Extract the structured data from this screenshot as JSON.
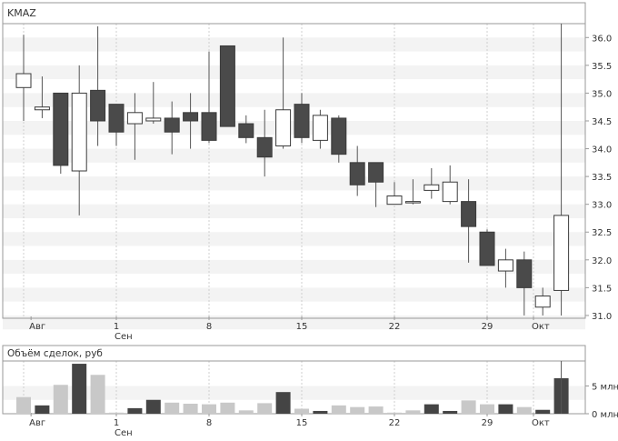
{
  "chart_data": [
    {
      "type": "candlestick",
      "title": "KMAZ",
      "y_tick_labels": [
        "36.0",
        "35.5",
        "35.0",
        "34.5",
        "34.0",
        "33.5",
        "33.0",
        "32.5",
        "32.0",
        "31.5",
        "31.0"
      ],
      "y_ticks": [
        36.0,
        35.5,
        35.0,
        34.5,
        34.0,
        33.5,
        33.0,
        32.5,
        32.0,
        31.5,
        31.0
      ],
      "ylim": [
        30.95,
        36.25
      ],
      "x_tick_labels": [
        {
          "label": "Авг",
          "day": 0.4
        },
        {
          "label": "1",
          "day": 5
        },
        {
          "label": "Сен",
          "day": 5
        },
        {
          "label": "8",
          "day": 10
        },
        {
          "label": "15",
          "day": 15
        },
        {
          "label": "22",
          "day": 20
        },
        {
          "label": "29",
          "day": 25
        },
        {
          "label": "Окт",
          "day": 27.5
        }
      ],
      "grid": true,
      "candles": [
        {
          "day": 0,
          "open": 35.1,
          "high": 36.05,
          "low": 34.5,
          "close": 35.35
        },
        {
          "day": 1,
          "open": 34.7,
          "high": 35.3,
          "low": 34.55,
          "close": 34.75
        },
        {
          "day": 2,
          "open": 35.0,
          "high": 35.0,
          "low": 33.55,
          "close": 33.7
        },
        {
          "day": 3,
          "open": 33.6,
          "high": 35.5,
          "low": 32.8,
          "close": 35.0
        },
        {
          "day": 4,
          "open": 35.05,
          "high": 36.2,
          "low": 34.05,
          "close": 34.5
        },
        {
          "day": 5,
          "open": 34.8,
          "high": 34.8,
          "low": 34.05,
          "close": 34.3
        },
        {
          "day": 6,
          "open": 34.45,
          "high": 35.0,
          "low": 33.8,
          "close": 34.65
        },
        {
          "day": 7,
          "open": 34.5,
          "high": 35.2,
          "low": 34.45,
          "close": 34.55
        },
        {
          "day": 8,
          "open": 34.55,
          "high": 34.85,
          "low": 33.9,
          "close": 34.3
        },
        {
          "day": 9,
          "open": 34.65,
          "high": 35.0,
          "low": 34.0,
          "close": 34.5
        },
        {
          "day": 10,
          "open": 34.65,
          "high": 35.75,
          "low": 34.1,
          "close": 34.15
        },
        {
          "day": 11,
          "open": 35.85,
          "high": 35.85,
          "low": 34.4,
          "close": 34.4
        },
        {
          "day": 12,
          "open": 34.45,
          "high": 34.6,
          "low": 34.1,
          "close": 34.2
        },
        {
          "day": 13,
          "open": 34.2,
          "high": 34.7,
          "low": 33.5,
          "close": 33.85
        },
        {
          "day": 14,
          "open": 34.05,
          "high": 36.0,
          "low": 34.0,
          "close": 34.7
        },
        {
          "day": 15,
          "open": 34.8,
          "high": 35.0,
          "low": 34.1,
          "close": 34.2
        },
        {
          "day": 16,
          "open": 34.15,
          "high": 34.7,
          "low": 34.0,
          "close": 34.6
        },
        {
          "day": 17,
          "open": 34.55,
          "high": 34.6,
          "low": 33.75,
          "close": 33.9
        },
        {
          "day": 18,
          "open": 33.75,
          "high": 34.05,
          "low": 33.15,
          "close": 33.35
        },
        {
          "day": 19,
          "open": 33.75,
          "high": 33.75,
          "low": 32.95,
          "close": 33.4
        },
        {
          "day": 20,
          "open": 33.0,
          "high": 33.4,
          "low": 33.0,
          "close": 33.15
        },
        {
          "day": 21,
          "open": 33.05,
          "high": 33.45,
          "low": 33.0,
          "close": 33.05
        },
        {
          "day": 22,
          "open": 33.25,
          "high": 33.65,
          "low": 33.1,
          "close": 33.35
        },
        {
          "day": 23,
          "open": 33.05,
          "high": 33.7,
          "low": 33.0,
          "close": 33.4
        },
        {
          "day": 24,
          "open": 33.05,
          "high": 33.45,
          "low": 31.95,
          "close": 32.6
        },
        {
          "day": 25,
          "open": 32.5,
          "high": 32.55,
          "low": 31.9,
          "close": 31.9
        },
        {
          "day": 26,
          "open": 31.8,
          "high": 32.2,
          "low": 31.5,
          "close": 32.0
        },
        {
          "day": 27,
          "open": 32.0,
          "high": 32.15,
          "low": 31.0,
          "close": 31.5
        },
        {
          "day": 28,
          "open": 31.15,
          "high": 31.5,
          "low": 31.0,
          "close": 31.35
        },
        {
          "day": 29,
          "open": 31.45,
          "high": 36.25,
          "low": 31.0,
          "close": 32.8
        }
      ]
    },
    {
      "type": "bar",
      "title": "Объём сделок, руб",
      "y_tick_labels": [
        "5 млн",
        "0 млн"
      ],
      "y_ticks": [
        5,
        0
      ],
      "ylim": [
        0,
        9.5
      ],
      "unit": "млн руб",
      "x_tick_labels": [
        {
          "label": "Авг",
          "day": 0.4
        },
        {
          "label": "1",
          "day": 5
        },
        {
          "label": "Сен",
          "day": 5
        },
        {
          "label": "8",
          "day": 10
        },
        {
          "label": "15",
          "day": 15
        },
        {
          "label": "22",
          "day": 20
        },
        {
          "label": "29",
          "day": 25
        },
        {
          "label": "Окт",
          "day": 27.5
        }
      ],
      "values": [
        3.0,
        1.5,
        5.2,
        9.0,
        7.0,
        0.2,
        1.0,
        2.5,
        2.0,
        1.8,
        1.7,
        2.0,
        0.6,
        1.9,
        3.9,
        0.9,
        0.5,
        1.5,
        1.2,
        1.3,
        0.2,
        0.6,
        1.7,
        0.5,
        2.4,
        1.7,
        1.7,
        1.2,
        0.7,
        6.4
      ],
      "dark_bars": [
        1,
        3,
        6,
        7,
        14,
        16,
        22,
        23,
        26,
        28,
        29
      ],
      "grid": true
    }
  ],
  "colors": {
    "candle_down": "#4a4a4a",
    "candle_up": "#ffffff",
    "wick": "#555555",
    "volume_light": "#c8c8c8",
    "volume_dark": "#444444",
    "band": "#f3f3f3",
    "axis": "#9a9a9a",
    "text": "#333333"
  }
}
